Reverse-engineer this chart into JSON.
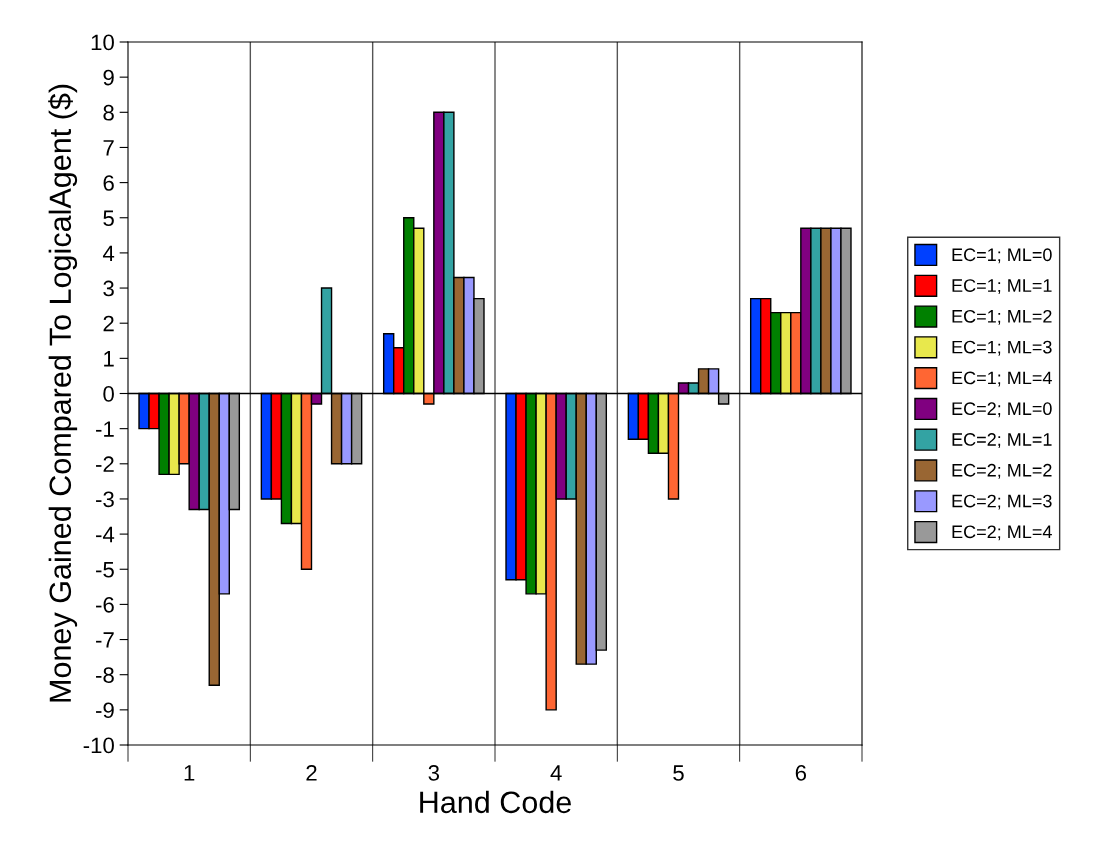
{
  "chart_data": {
    "type": "bar",
    "xlabel": "Hand Code",
    "ylabel": "Money Gained Compared To LogicalAgent ($)",
    "categories": [
      "1",
      "2",
      "3",
      "4",
      "5",
      "6"
    ],
    "series": [
      {
        "name": "EC=1; ML=0",
        "color": "#0040ff",
        "values": [
          -1,
          -3,
          1.7,
          -5.3,
          -1.3,
          2.7
        ]
      },
      {
        "name": "EC=1; ML=1",
        "color": "#ff0000",
        "values": [
          -1,
          -3,
          1.3,
          -5.3,
          -1.3,
          2.7
        ]
      },
      {
        "name": "EC=1; ML=2",
        "color": "#008000",
        "values": [
          -2.3,
          -3.7,
          5,
          -5.7,
          -1.7,
          2.3
        ]
      },
      {
        "name": "EC=1; ML=3",
        "color": "#e8e84c",
        "values": [
          -2.3,
          -3.7,
          4.7,
          -5.7,
          -1.7,
          2.3
        ]
      },
      {
        "name": "EC=1; ML=4",
        "color": "#ff6633",
        "values": [
          -2,
          -5,
          -0.3,
          -9,
          -3,
          2.3
        ]
      },
      {
        "name": "EC=2; ML=0",
        "color": "#800080",
        "values": [
          -3.3,
          -0.3,
          8,
          -3,
          0.3,
          4.7
        ]
      },
      {
        "name": "EC=2; ML=1",
        "color": "#33a3a3",
        "values": [
          -3.3,
          3,
          8,
          -3,
          0.3,
          4.7
        ]
      },
      {
        "name": "EC=2; ML=2",
        "color": "#996633",
        "values": [
          -8.3,
          -2,
          3.3,
          -7.7,
          0.7,
          4.7
        ]
      },
      {
        "name": "EC=2; ML=3",
        "color": "#9999ff",
        "values": [
          -5.7,
          -2,
          3.3,
          -7.7,
          0.7,
          4.7
        ]
      },
      {
        "name": "EC=2; ML=4",
        "color": "#999999",
        "values": [
          -3.3,
          -2,
          2.7,
          -7.3,
          -0.3,
          4.7
        ]
      }
    ],
    "ylim": [
      -10,
      10
    ],
    "yticks": [
      -10,
      -9,
      -8,
      -7,
      -6,
      -5,
      -4,
      -3,
      -2,
      -1,
      0,
      1,
      2,
      3,
      4,
      5,
      6,
      7,
      8,
      9,
      10
    ],
    "grid": "x",
    "legend": "right"
  }
}
